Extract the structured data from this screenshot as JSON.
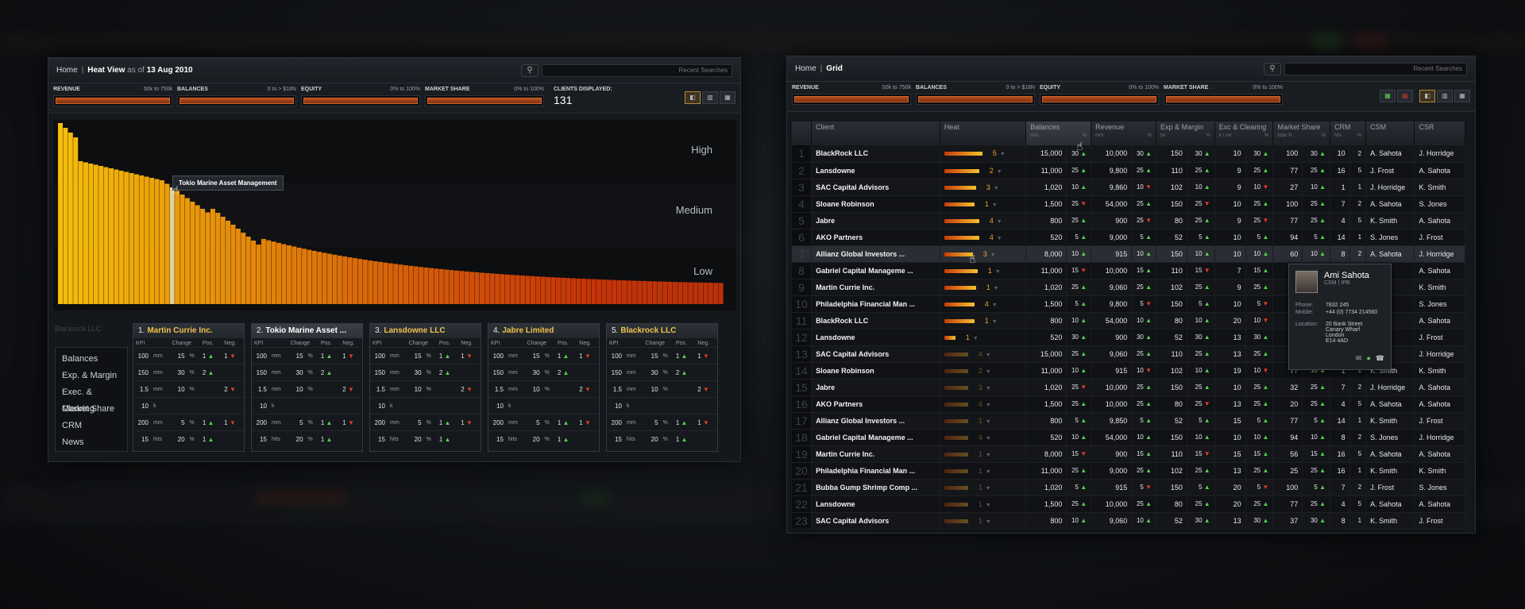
{
  "heat_view": {
    "breadcrumb_home": "Home",
    "breadcrumb_sep": "|",
    "title": "Heat View",
    "as_of_prefix": "as of",
    "date": "13 Aug 2010",
    "search_placeholder": "Recent Searches",
    "filters": [
      {
        "label": "REVENUE",
        "range_from": "50k",
        "range_to_word": "to",
        "range_to": "750k"
      },
      {
        "label": "BALANCES",
        "range_from": "0",
        "range_to_word": "to",
        "range_to": "> $18N"
      },
      {
        "label": "EQUITY",
        "range_from": "0%",
        "range_to_word": "to",
        "range_to": "100%"
      },
      {
        "label": "MARKET SHARE",
        "range_from": "0%",
        "range_to_word": "to",
        "range_to": "100%"
      }
    ],
    "clients_displayed_label": "CLIENTS DISPLAYED:",
    "clients_displayed": "131",
    "zones": {
      "high": "High",
      "medium": "Medium",
      "low": "Low"
    },
    "tooltip": "Tokio Marine Asset Management",
    "menu_ghost": "Blackrock LLC",
    "kpi_menu": [
      "Balances",
      "Exp. & Margin",
      "Exec. & Clearing",
      "Market Share",
      "CRM",
      "News"
    ],
    "card_headers": {
      "kpi": "KPI",
      "change": "Change",
      "pos": "Pos.",
      "neg": "Neg."
    },
    "cards": [
      {
        "idx": "1.",
        "name": "Martin Currie Inc."
      },
      {
        "idx": "2.",
        "name": "Tokio Marine Asset ..."
      },
      {
        "idx": "3.",
        "name": "Lansdowne LLC"
      },
      {
        "idx": "4.",
        "name": "Jabre Limited"
      },
      {
        "idx": "5.",
        "name": "Blackrock LLC"
      }
    ],
    "card_rows": [
      {
        "v": "100",
        "u": "mm",
        "c": "15",
        "cu": "%",
        "p": "1",
        "n": "1"
      },
      {
        "v": "150",
        "u": "mm",
        "c": "30",
        "cu": "%",
        "p": "2",
        "n": ""
      },
      {
        "v": "1.5",
        "u": "mm",
        "c": "10",
        "cu": "%",
        "p": "",
        "n": "2"
      },
      {
        "v": "10",
        "u": "k",
        "c": "",
        "cu": "",
        "p": "",
        "n": ""
      },
      {
        "v": "200",
        "u": "mm",
        "c": "5",
        "cu": "%",
        "p": "1",
        "n": "1"
      },
      {
        "v": "15",
        "u": "hits",
        "c": "20",
        "cu": "%",
        "p": "1",
        "n": ""
      }
    ]
  },
  "grid_view": {
    "breadcrumb_home": "Home",
    "breadcrumb_sep": "|",
    "title": "Grid",
    "search_placeholder": "Recent Searches",
    "filters": [
      {
        "label": "REVENUE",
        "range_from": "50k",
        "range_to_word": "to",
        "range_to": "750k"
      },
      {
        "label": "BALANCES",
        "range_from": "0",
        "range_to_word": "to",
        "range_to": "> $18N"
      },
      {
        "label": "EQUITY",
        "range_from": "0%",
        "range_to_word": "to",
        "range_to": "100%"
      },
      {
        "label": "MARKET SHARE",
        "range_from": "0%",
        "range_to_word": "to",
        "range_to": "100%"
      }
    ],
    "columns": [
      {
        "label": "Client",
        "sub": [
          "",
          ""
        ]
      },
      {
        "label": "Heat",
        "sub": [
          "",
          ""
        ]
      },
      {
        "label": "Balances",
        "sub": [
          "mm",
          "%"
        ]
      },
      {
        "label": "Revenue",
        "sub": [
          "mm",
          "%"
        ]
      },
      {
        "label": "Exp & Margin",
        "sub": [
          "bn",
          "%"
        ]
      },
      {
        "label": "Exc & Clearing",
        "sub": [
          "k / vol",
          "%"
        ]
      },
      {
        "label": "Market Share",
        "sub": [
          "total %",
          "%"
        ]
      },
      {
        "label": "CRM",
        "sub": [
          "hits",
          "%"
        ]
      },
      {
        "label": "CSM",
        "sub": [
          "",
          ""
        ]
      },
      {
        "label": "CSR",
        "sub": [
          "",
          ""
        ]
      }
    ],
    "rows": [
      {
        "n": "1",
        "client": "BlackRock LLC",
        "heat": 5,
        "hw": 48,
        "bal": "15,000",
        "balp": "30",
        "bald": "up",
        "rev": "10,000",
        "revp": "30",
        "revd": "up",
        "exp": "150",
        "expp": "30",
        "expd": "up",
        "exc": "10",
        "excp": "30",
        "excd": "up",
        "ms": "100",
        "msp": "30",
        "msd": "up",
        "crm": "10",
        "crmp": "2",
        "csm": "A. Sahota",
        "csr": "J. Horridge"
      },
      {
        "n": "2",
        "client": "Lansdowne",
        "heat": 2,
        "hw": 44,
        "bal": "11,000",
        "balp": "25",
        "bald": "up",
        "rev": "9,800",
        "revp": "25",
        "revd": "up",
        "exp": "110",
        "expp": "25",
        "expd": "up",
        "exc": "9",
        "excp": "25",
        "excd": "up",
        "ms": "77",
        "msp": "25",
        "msd": "up",
        "crm": "16",
        "crmp": "5",
        "csm": "J. Frost",
        "csr": "A. Sahota"
      },
      {
        "n": "3",
        "client": "SAC Capital Advisors",
        "heat": 3,
        "hw": 40,
        "bal": "1,020",
        "balp": "10",
        "bald": "up",
        "rev": "9,860",
        "revp": "10",
        "revd": "down",
        "exp": "102",
        "expp": "10",
        "expd": "up",
        "exc": "9",
        "excp": "10",
        "excd": "down",
        "ms": "27",
        "msp": "10",
        "msd": "up",
        "crm": "1",
        "crmp": "1",
        "csm": "J. Horridge",
        "csr": "K. Smith"
      },
      {
        "n": "4",
        "client": "Sloane Robinson",
        "heat": 1,
        "hw": 38,
        "bal": "1,500",
        "balp": "25",
        "bald": "down",
        "rev": "54,000",
        "revp": "25",
        "revd": "up",
        "exp": "150",
        "expp": "25",
        "expd": "down",
        "exc": "10",
        "excp": "25",
        "excd": "up",
        "ms": "100",
        "msp": "25",
        "msd": "up",
        "crm": "7",
        "crmp": "2",
        "csm": "A. Sahota",
        "csr": "S. Jones"
      },
      {
        "n": "5",
        "client": "Jabre",
        "heat": 4,
        "hw": 44,
        "bal": "800",
        "balp": "25",
        "bald": "up",
        "rev": "900",
        "revp": "25",
        "revd": "down",
        "exp": "80",
        "expp": "25",
        "expd": "up",
        "exc": "9",
        "excp": "25",
        "excd": "down",
        "ms": "77",
        "msp": "25",
        "msd": "up",
        "crm": "4",
        "crmp": "5",
        "csm": "K. Smith",
        "csr": "A. Sahota"
      },
      {
        "n": "6",
        "client": "AKO Partners",
        "heat": 4,
        "hw": 44,
        "bal": "520",
        "balp": "5",
        "bald": "up",
        "rev": "9,000",
        "revp": "5",
        "revd": "up",
        "exp": "52",
        "expp": "5",
        "expd": "up",
        "exc": "10",
        "excp": "5",
        "excd": "up",
        "ms": "94",
        "msp": "5",
        "msd": "up",
        "crm": "14",
        "crmp": "1",
        "csm": "S. Jones",
        "csr": "J. Frost"
      },
      {
        "n": "7",
        "client": "Allianz Global Investors ...",
        "heat": 3,
        "hw": 36,
        "bal": "8,000",
        "balp": "10",
        "bald": "up",
        "rev": "915",
        "revp": "10",
        "revd": "up",
        "exp": "150",
        "expp": "10",
        "expd": "up",
        "exc": "10",
        "excp": "10",
        "excd": "up",
        "ms": "60",
        "msp": "10",
        "msd": "up",
        "crm": "8",
        "crmp": "2",
        "csm": "A. Sahota",
        "csr": "J. Horridge",
        "hl": true
      },
      {
        "n": "8",
        "client": "Gabriel Capital Manageme ...",
        "heat": 1,
        "hw": 42,
        "bal": "11,000",
        "balp": "15",
        "bald": "down",
        "rev": "10,000",
        "revp": "15",
        "revd": "up",
        "exp": "110",
        "expp": "15",
        "expd": "down",
        "exc": "7",
        "excp": "15",
        "excd": "up",
        "ms": "",
        "msp": "",
        "msd": "",
        "crm": "",
        "crmp": "",
        "csm": "",
        "csr": "A. Sahota"
      },
      {
        "n": "9",
        "client": "Martin Currie Inc.",
        "heat": 1,
        "hw": 40,
        "bal": "1,020",
        "balp": "25",
        "bald": "up",
        "rev": "9,060",
        "revp": "25",
        "revd": "up",
        "exp": "102",
        "expp": "25",
        "expd": "up",
        "exc": "9",
        "excp": "25",
        "excd": "up",
        "ms": "",
        "msp": "",
        "msd": "",
        "crm": "",
        "crmp": "",
        "csm": "",
        "csr": "K. Smith"
      },
      {
        "n": "10",
        "client": "Philadelphia Financial Man ...",
        "heat": 4,
        "hw": 38,
        "bal": "1,500",
        "balp": "5",
        "bald": "up",
        "rev": "9,800",
        "revp": "5",
        "revd": "down",
        "exp": "150",
        "expp": "5",
        "expd": "up",
        "exc": "10",
        "excp": "5",
        "excd": "down",
        "ms": "",
        "msp": "",
        "msd": "",
        "crm": "",
        "crmp": "",
        "csm": "",
        "csr": "S. Jones"
      },
      {
        "n": "11",
        "client": "BlackRock LLC",
        "heat": 1,
        "hw": 38,
        "bal": "800",
        "balp": "10",
        "bald": "up",
        "rev": "54,000",
        "revp": "10",
        "revd": "up",
        "exp": "80",
        "expp": "10",
        "expd": "up",
        "exc": "20",
        "excp": "10",
        "excd": "down",
        "ms": "37",
        "msp": "",
        "msd": "",
        "crm": "",
        "crmp": "",
        "csm": "",
        "csr": "A. Sahota"
      },
      {
        "n": "12",
        "client": "Lansdowne",
        "heat": 1,
        "hw": 14,
        "bal": "520",
        "balp": "30",
        "bald": "up",
        "rev": "900",
        "revp": "30",
        "revd": "up",
        "exp": "52",
        "expp": "30",
        "expd": "up",
        "exc": "13",
        "excp": "30",
        "excd": "up",
        "ms": "",
        "msp": "",
        "msd": "",
        "crm": "",
        "crmp": "",
        "csm": "",
        "csr": "J. Frost"
      },
      {
        "n": "13",
        "client": "SAC Capital Advisors",
        "heat": 4,
        "hw": 30,
        "bal": "15,000",
        "balp": "25",
        "bald": "up",
        "rev": "9,060",
        "revp": "25",
        "revd": "up",
        "exp": "110",
        "expp": "25",
        "expd": "up",
        "exc": "13",
        "excp": "25",
        "excd": "up",
        "ms": "",
        "msp": "",
        "msd": "",
        "crm": "",
        "crmp": "",
        "csm": "",
        "csr": "J. Horridge"
      },
      {
        "n": "14",
        "client": "Sloane Robinson",
        "heat": 2,
        "hw": 30,
        "bal": "11,000",
        "balp": "10",
        "bald": "up",
        "rev": "915",
        "revp": "10",
        "revd": "down",
        "exp": "102",
        "expp": "10",
        "expd": "up",
        "exc": "19",
        "excp": "10",
        "excd": "down",
        "ms": "77",
        "msp": "10",
        "msd": "up",
        "crm": "1",
        "crmp": "1",
        "csm": "K. Smith",
        "csr": "K. Smith"
      },
      {
        "n": "15",
        "client": "Jabre",
        "heat": 3,
        "hw": 30,
        "bal": "1,020",
        "balp": "25",
        "bald": "down",
        "rev": "10,000",
        "revp": "25",
        "revd": "up",
        "exp": "150",
        "expp": "25",
        "expd": "up",
        "exc": "10",
        "excp": "25",
        "excd": "up",
        "ms": "32",
        "msp": "25",
        "msd": "up",
        "crm": "7",
        "crmp": "2",
        "csm": "J. Horridge",
        "csr": "A. Sahota"
      },
      {
        "n": "16",
        "client": "AKO Partners",
        "heat": 4,
        "hw": 30,
        "bal": "1,500",
        "balp": "25",
        "bald": "up",
        "rev": "10,000",
        "revp": "25",
        "revd": "up",
        "exp": "80",
        "expp": "25",
        "expd": "down",
        "exc": "13",
        "excp": "25",
        "excd": "up",
        "ms": "20",
        "msp": "25",
        "msd": "up",
        "crm": "4",
        "crmp": "5",
        "csm": "A. Sahota",
        "csr": "A. Sahota"
      },
      {
        "n": "17",
        "client": "Allianz Global Investors ...",
        "heat": 1,
        "hw": 30,
        "bal": "800",
        "balp": "5",
        "bald": "up",
        "rev": "9,850",
        "revp": "5",
        "revd": "up",
        "exp": "52",
        "expp": "5",
        "expd": "up",
        "exc": "15",
        "excp": "5",
        "excd": "up",
        "ms": "77",
        "msp": "5",
        "msd": "up",
        "crm": "14",
        "crmp": "1",
        "csm": "K. Smith",
        "csr": "J. Frost"
      },
      {
        "n": "18",
        "client": "Gabriel Capital Manageme ...",
        "heat": 4,
        "hw": 30,
        "bal": "520",
        "balp": "10",
        "bald": "up",
        "rev": "54,000",
        "revp": "10",
        "revd": "up",
        "exp": "150",
        "expp": "10",
        "expd": "up",
        "exc": "10",
        "excp": "10",
        "excd": "up",
        "ms": "94",
        "msp": "10",
        "msd": "up",
        "crm": "8",
        "crmp": "2",
        "csm": "S. Jones",
        "csr": "J. Horridge"
      },
      {
        "n": "19",
        "client": "Martin Currie Inc.",
        "heat": 1,
        "hw": 30,
        "bal": "8,000",
        "balp": "15",
        "bald": "down",
        "rev": "900",
        "revp": "15",
        "revd": "up",
        "exp": "110",
        "expp": "15",
        "expd": "down",
        "exc": "15",
        "excp": "15",
        "excd": "up",
        "ms": "56",
        "msp": "15",
        "msd": "up",
        "crm": "16",
        "crmp": "5",
        "csm": "A. Sahota",
        "csr": "A. Sahota"
      },
      {
        "n": "20",
        "client": "Philadelphia Financial Man ...",
        "heat": 1,
        "hw": 30,
        "bal": "11,000",
        "balp": "25",
        "bald": "up",
        "rev": "9,000",
        "revp": "25",
        "revd": "up",
        "exp": "102",
        "expp": "25",
        "expd": "up",
        "exc": "13",
        "excp": "25",
        "excd": "up",
        "ms": "25",
        "msp": "25",
        "msd": "up",
        "crm": "16",
        "crmp": "1",
        "csm": "K. Smith",
        "csr": "K. Smith"
      },
      {
        "n": "21",
        "client": "Bubba Gump Shrimp Comp ...",
        "heat": 1,
        "hw": 30,
        "bal": "1,020",
        "balp": "5",
        "bald": "up",
        "rev": "915",
        "revp": "5",
        "revd": "down",
        "exp": "150",
        "expp": "5",
        "expd": "up",
        "exc": "20",
        "excp": "5",
        "excd": "down",
        "ms": "100",
        "msp": "5",
        "msd": "up",
        "crm": "7",
        "crmp": "2",
        "csm": "J. Frost",
        "csr": "S. Jones"
      },
      {
        "n": "22",
        "client": "Lansdowne",
        "heat": 1,
        "hw": 30,
        "bal": "1,500",
        "balp": "25",
        "bald": "up",
        "rev": "10,000",
        "revp": "25",
        "revd": "up",
        "exp": "80",
        "expp": "25",
        "expd": "up",
        "exc": "20",
        "excp": "25",
        "excd": "up",
        "ms": "77",
        "msp": "25",
        "msd": "up",
        "crm": "4",
        "crmp": "5",
        "csm": "A. Sahota",
        "csr": "A. Sahota"
      },
      {
        "n": "23",
        "client": "SAC Capital Advisors",
        "heat": 1,
        "hw": 30,
        "bal": "800",
        "balp": "10",
        "bald": "up",
        "rev": "9,060",
        "revp": "10",
        "revd": "up",
        "exp": "52",
        "expp": "30",
        "expd": "up",
        "exc": "13",
        "excp": "30",
        "excd": "up",
        "ms": "37",
        "msp": "30",
        "msd": "up",
        "crm": "8",
        "crmp": "1",
        "csm": "K. Smith",
        "csr": "J. Frost"
      }
    ],
    "contact": {
      "name": "Ami Sahota",
      "role": "CSM | IPB",
      "phone_label": "Phone:",
      "phone": "7832 245",
      "mobile_label": "Mobile:",
      "mobile": "+44 (0) 7734 214560",
      "location_label": "Location:",
      "location": [
        "20 Bank Street",
        "Canary Wharf",
        "London",
        "E14 4AD"
      ]
    }
  },
  "chart_data": {
    "type": "bar",
    "series_count": 131,
    "zones": [
      "High",
      "Medium",
      "Low"
    ],
    "highlighted_index": 22
  }
}
